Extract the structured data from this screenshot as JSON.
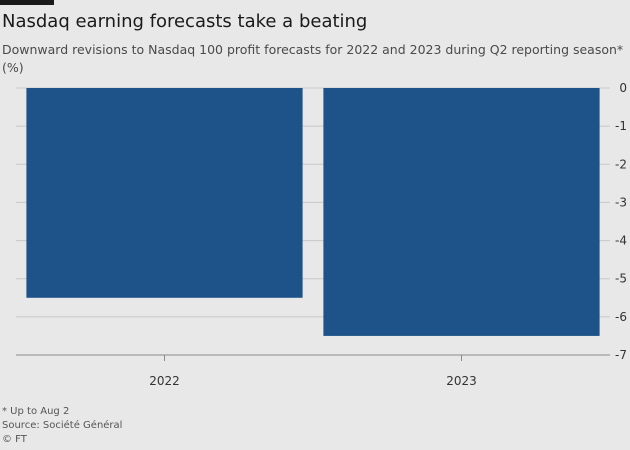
{
  "header": {
    "title": "Nasdaq earning forecasts take a beating",
    "subtitle": "Downward revisions to Nasdaq 100 profit forecasts for 2022 and 2023 during Q2 reporting season*",
    "unit": "(%)"
  },
  "footer": {
    "note": "* Up to Aug 2",
    "source": "Source: Société Général",
    "credit": "© FT"
  },
  "colors": {
    "bar": "#1e538a",
    "background": "#e8e8e8",
    "grid": "#c8c8c8"
  },
  "chart_data": {
    "type": "bar",
    "categories": [
      "2022",
      "2023"
    ],
    "values": [
      -5.5,
      -6.5
    ],
    "ylim": [
      -7,
      0
    ],
    "yticks": [
      0,
      -1,
      -2,
      -3,
      -4,
      -5,
      -6,
      -7
    ],
    "ytick_labels": [
      "0",
      "-1",
      "-2",
      "-3",
      "-4",
      "-5",
      "-6",
      "-7"
    ],
    "y_axis_position": "right",
    "grid": true,
    "title": "Nasdaq earning forecasts take a beating",
    "xlabel": "",
    "ylabel": ""
  }
}
